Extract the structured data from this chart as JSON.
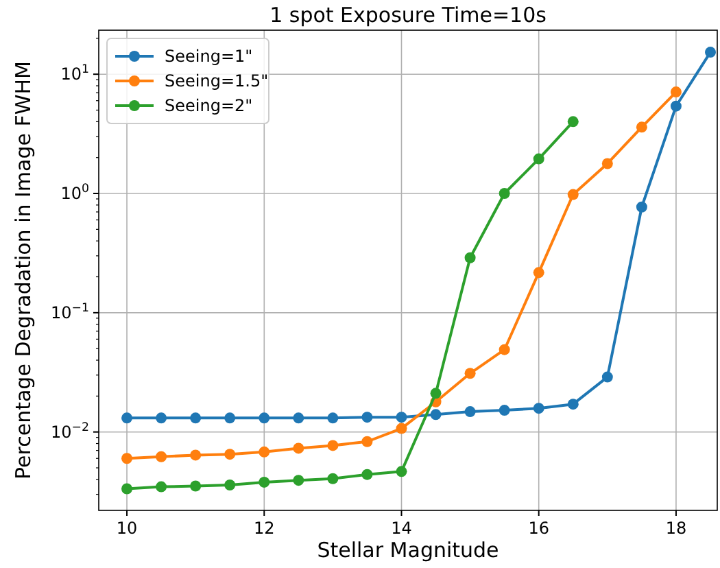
{
  "chart_data": {
    "type": "line",
    "title": "1 spot Exposure Time=10s",
    "xlabel": "Stellar Magnitude",
    "ylabel": "Percentage Degradation in Image FWHM",
    "x": [
      10,
      10.5,
      11,
      11.5,
      12,
      12.5,
      13,
      13.5,
      14,
      14.5,
      15,
      15.5,
      16,
      16.5,
      17,
      17.5,
      18,
      18.5
    ],
    "series": [
      {
        "name": "Seeing=1\"",
        "color": "#1f77b4",
        "values": [
          0.0131,
          0.0131,
          0.0131,
          0.0131,
          0.0131,
          0.0131,
          0.0131,
          0.0133,
          0.0133,
          0.014,
          0.0148,
          0.0152,
          0.0158,
          0.0171,
          0.0289,
          0.77,
          5.4,
          15.3
        ]
      },
      {
        "name": "Seeing=1.5\"",
        "color": "#ff7f0e",
        "x": [
          10,
          10.5,
          11,
          11.5,
          12,
          12.5,
          13,
          13.5,
          14,
          14.5,
          15,
          15.5,
          16,
          16.5,
          17,
          17.5,
          18
        ],
        "values": [
          0.006,
          0.0062,
          0.0064,
          0.0065,
          0.0068,
          0.0073,
          0.0077,
          0.0083,
          0.0107,
          0.0179,
          0.031,
          0.049,
          0.217,
          0.98,
          1.78,
          3.6,
          7.1
        ]
      },
      {
        "name": "Seeing=2\"",
        "color": "#2ca02c",
        "x": [
          10,
          10.5,
          11,
          11.5,
          12,
          12.5,
          13,
          13.5,
          14,
          14.5,
          15,
          15.5,
          16,
          16.5
        ],
        "values": [
          0.00334,
          0.00347,
          0.00352,
          0.00359,
          0.00379,
          0.00393,
          0.00406,
          0.0044,
          0.00466,
          0.0211,
          0.289,
          1.0,
          1.95,
          4.0
        ]
      }
    ],
    "xlim": [
      9.59,
      18.6
    ],
    "xticks": [
      10,
      12,
      14,
      16,
      18
    ],
    "ylim": [
      0.0022,
      23.4
    ],
    "yticks": [
      {
        "value": 0.01,
        "label": "10$^{−2}$"
      },
      {
        "value": 0.1,
        "label": "10$^{−1}$"
      },
      {
        "value": 1,
        "label": "10$^{0}$"
      },
      {
        "value": 10,
        "label": "10$^{1}$"
      }
    ],
    "log": "y",
    "grid": true,
    "legend": "top left",
    "marker": "circle",
    "line_style": "solid"
  }
}
